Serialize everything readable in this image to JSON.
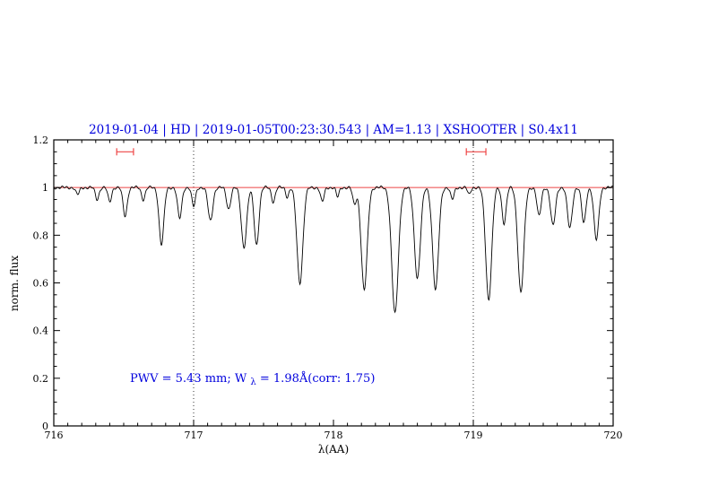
{
  "title": "2019-01-04 | HD | 2019-01-05T00:23:30.543 | AM=1.13 | XSHOOTER | S0.4x11",
  "annotation": {
    "prefix": "PWV = 5.43 mm; W",
    "sub": "λ",
    "suffix": " = 1.98Å(corr: 1.75)"
  },
  "colors": {
    "title_blue": "#0000dd",
    "annotation_blue": "#0000dd",
    "reference_red": "#ee4444",
    "spectrum_black": "#000000",
    "frame_black": "#000000"
  },
  "chart_data": {
    "type": "line",
    "title": "2019-01-04 | HD | 2019-01-05T00:23:30.543 | AM=1.13 | XSHOOTER | S0.4x11",
    "xlabel": "λ(AA)",
    "ylabel": "norm. flux",
    "xlim": [
      716,
      720
    ],
    "ylim": [
      0,
      1.2
    ],
    "x_ticks": [
      716,
      717,
      718,
      719,
      720
    ],
    "x_tick_labels": [
      "716",
      "717",
      "718",
      "719",
      "720"
    ],
    "y_ticks": [
      0,
      0.2,
      0.4,
      0.6,
      0.8,
      1,
      1.2
    ],
    "y_tick_labels": [
      "0",
      "0.2",
      "0.4",
      "0.6",
      "0.8",
      "1",
      "1.2"
    ],
    "grid": false,
    "legend": false,
    "continuum": 1.0,
    "continuum_line": {
      "y": 1.0
    },
    "dotted_vlines_x": [
      717,
      719
    ],
    "range_markers": [
      {
        "x1": 716.45,
        "x2": 716.57,
        "y": 1.15
      },
      {
        "x1": 718.95,
        "x2": 719.09,
        "y": 1.15
      }
    ],
    "absorption_lines": [
      {
        "c": 716.17,
        "d": 0.03,
        "w": 0.03
      },
      {
        "c": 716.31,
        "d": 0.05,
        "w": 0.03
      },
      {
        "c": 716.4,
        "d": 0.06,
        "w": 0.03
      },
      {
        "c": 716.51,
        "d": 0.12,
        "w": 0.035
      },
      {
        "c": 716.64,
        "d": 0.05,
        "w": 0.03
      },
      {
        "c": 716.77,
        "d": 0.24,
        "w": 0.04
      },
      {
        "c": 716.9,
        "d": 0.13,
        "w": 0.035
      },
      {
        "c": 717.0,
        "d": 0.08,
        "w": 0.03
      },
      {
        "c": 717.12,
        "d": 0.14,
        "w": 0.04
      },
      {
        "c": 717.25,
        "d": 0.09,
        "w": 0.035
      },
      {
        "c": 717.36,
        "d": 0.25,
        "w": 0.045
      },
      {
        "c": 717.45,
        "d": 0.24,
        "w": 0.04
      },
      {
        "c": 717.57,
        "d": 0.06,
        "w": 0.03
      },
      {
        "c": 717.67,
        "d": 0.04,
        "w": 0.025
      },
      {
        "c": 717.76,
        "d": 0.4,
        "w": 0.05
      },
      {
        "c": 717.92,
        "d": 0.06,
        "w": 0.03
      },
      {
        "c": 718.03,
        "d": 0.04,
        "w": 0.025
      },
      {
        "c": 718.15,
        "d": 0.07,
        "w": 0.03
      },
      {
        "c": 718.22,
        "d": 0.43,
        "w": 0.05
      },
      {
        "c": 718.44,
        "d": 0.53,
        "w": 0.055
      },
      {
        "c": 718.6,
        "d": 0.38,
        "w": 0.05
      },
      {
        "c": 718.73,
        "d": 0.43,
        "w": 0.05
      },
      {
        "c": 718.85,
        "d": 0.05,
        "w": 0.03
      },
      {
        "c": 718.97,
        "d": 0.03,
        "w": 0.025
      },
      {
        "c": 719.11,
        "d": 0.47,
        "w": 0.05
      },
      {
        "c": 719.22,
        "d": 0.15,
        "w": 0.035
      },
      {
        "c": 719.34,
        "d": 0.44,
        "w": 0.05
      },
      {
        "c": 719.47,
        "d": 0.12,
        "w": 0.035
      },
      {
        "c": 719.57,
        "d": 0.16,
        "w": 0.04
      },
      {
        "c": 719.69,
        "d": 0.17,
        "w": 0.04
      },
      {
        "c": 719.79,
        "d": 0.15,
        "w": 0.035
      },
      {
        "c": 719.88,
        "d": 0.22,
        "w": 0.04
      }
    ]
  }
}
